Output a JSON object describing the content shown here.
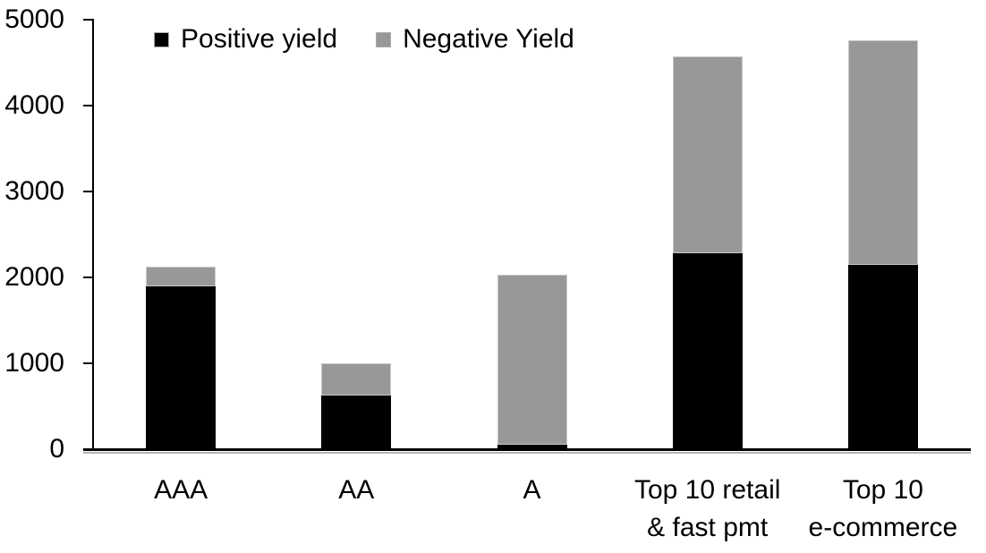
{
  "chart_data": {
    "type": "bar",
    "stacked": true,
    "title": "",
    "xlabel": "",
    "ylabel": "",
    "categories": [
      "AAA",
      "AA",
      "A",
      "Top 10 retail & fast pmt",
      "Top 10 e-commerce"
    ],
    "category_lines": [
      [
        "AAA"
      ],
      [
        "AA"
      ],
      [
        "A"
      ],
      [
        "Top 10 retail",
        "& fast pmt"
      ],
      [
        "Top 10",
        "e-commerce"
      ]
    ],
    "series": [
      {
        "name": "Positive yield",
        "color": "#000000",
        "values": [
          1900,
          620,
          50,
          2280,
          2150
        ]
      },
      {
        "name": "Negative Yield",
        "color": "#989898",
        "values": [
          220,
          380,
          1980,
          2290,
          2610
        ]
      }
    ],
    "totals": [
      2120,
      1000,
      2030,
      4570,
      4760
    ],
    "ylim": [
      0,
      5000
    ],
    "yticks": [
      0,
      1000,
      2000,
      3000,
      4000,
      5000
    ],
    "grid": false,
    "legend_position": "top-left",
    "axis_color": "#000000",
    "axis_shadow_color": "#b4b4b4",
    "bar_outline_color": "#c9c9c9",
    "background_color": "#ffffff"
  }
}
